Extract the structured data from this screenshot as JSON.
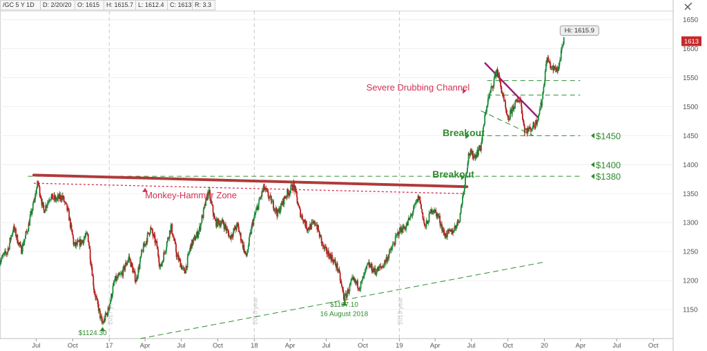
{
  "header": {
    "symbol": "/GC 5 Y 1D",
    "date": "D: 2/20/20",
    "open": "O: 1615",
    "high": "H: 1615.7",
    "low": "L: 1612.4",
    "close": "C: 1613",
    "range": "R: 3.3"
  },
  "icons": {
    "settings": "pencil-ruler-icon"
  },
  "colors": {
    "up": "#1b8a3a",
    "down": "#b71c1c",
    "resistance": "#b03a3a",
    "channel": "#9c1d7a",
    "green_text": "#2e8b2e",
    "red_text": "#d32f4f",
    "price_tag": "#c62828"
  },
  "chart_data": {
    "type": "line",
    "title": "",
    "xlabel": "",
    "ylabel": "",
    "ylim": [
      1100,
      1665
    ],
    "y_ticks": [
      "1150",
      "1200",
      "1250",
      "1300",
      "1350",
      "1400",
      "1450",
      "1500",
      "1550",
      "1600",
      "1650"
    ],
    "x_ticks": [
      "Jul",
      "Oct",
      "17",
      "Apr",
      "Jul",
      "Oct",
      "18",
      "Apr",
      "Jul",
      "Oct",
      "19",
      "Apr",
      "Jul",
      "Oct",
      "20",
      "Apr",
      "Jul",
      "Oct"
    ],
    "x_tick_dates": [
      "2016-07-01",
      "2016-10-01",
      "2017-01-01",
      "2017-04-01",
      "2017-07-01",
      "2017-10-01",
      "2018-01-01",
      "2018-04-01",
      "2018-07-01",
      "2018-10-01",
      "2019-01-01",
      "2019-04-01",
      "2019-07-01",
      "2019-10-01",
      "2020-01-01",
      "2020-04-01",
      "2020-07-01",
      "2020-10-01"
    ],
    "x_range": [
      "2016-04-01",
      "2020-11-20"
    ],
    "year_markers": [
      {
        "date": "2017-01-01",
        "label": "2017 year"
      },
      {
        "date": "2018-01-01",
        "label": "2018 year"
      },
      {
        "date": "2019-01-01",
        "label": "2019 year"
      }
    ],
    "series": [
      {
        "values": [
          [
            "2016-04-01",
            1235
          ],
          [
            "2016-04-20",
            1250
          ],
          [
            "2016-05-05",
            1292
          ],
          [
            "2016-05-25",
            1252
          ],
          [
            "2016-06-10",
            1290
          ],
          [
            "2016-06-24",
            1330
          ],
          [
            "2016-07-06",
            1370
          ],
          [
            "2016-07-20",
            1320
          ],
          [
            "2016-08-05",
            1345
          ],
          [
            "2016-08-20",
            1340
          ],
          [
            "2016-09-05",
            1345
          ],
          [
            "2016-09-20",
            1318
          ],
          [
            "2016-10-05",
            1260
          ],
          [
            "2016-10-20",
            1265
          ],
          [
            "2016-11-08",
            1280
          ],
          [
            "2016-11-25",
            1180
          ],
          [
            "2016-12-15",
            1124.3
          ],
          [
            "2016-12-30",
            1150
          ],
          [
            "2017-01-15",
            1200
          ],
          [
            "2017-02-01",
            1210
          ],
          [
            "2017-02-20",
            1240
          ],
          [
            "2017-03-10",
            1200
          ],
          [
            "2017-03-25",
            1250
          ],
          [
            "2017-04-15",
            1290
          ],
          [
            "2017-05-01",
            1260
          ],
          [
            "2017-05-10",
            1220
          ],
          [
            "2017-06-06",
            1295
          ],
          [
            "2017-06-20",
            1245
          ],
          [
            "2017-07-10",
            1212
          ],
          [
            "2017-07-25",
            1260
          ],
          [
            "2017-08-15",
            1285
          ],
          [
            "2017-09-08",
            1355
          ],
          [
            "2017-09-25",
            1300
          ],
          [
            "2017-10-15",
            1300
          ],
          [
            "2017-11-01",
            1275
          ],
          [
            "2017-11-20",
            1295
          ],
          [
            "2017-12-12",
            1240
          ],
          [
            "2017-12-28",
            1300
          ],
          [
            "2018-01-25",
            1360
          ],
          [
            "2018-02-15",
            1335
          ],
          [
            "2018-03-01",
            1315
          ],
          [
            "2018-03-20",
            1345
          ],
          [
            "2018-04-11",
            1365
          ],
          [
            "2018-04-25",
            1320
          ],
          [
            "2018-05-15",
            1290
          ],
          [
            "2018-06-05",
            1300
          ],
          [
            "2018-06-25",
            1255
          ],
          [
            "2018-07-15",
            1240
          ],
          [
            "2018-07-30",
            1222
          ],
          [
            "2018-08-16",
            1167.1
          ],
          [
            "2018-09-05",
            1200
          ],
          [
            "2018-09-25",
            1190
          ],
          [
            "2018-10-15",
            1228
          ],
          [
            "2018-11-01",
            1215
          ],
          [
            "2018-11-20",
            1225
          ],
          [
            "2018-12-10",
            1250
          ],
          [
            "2018-12-31",
            1285
          ],
          [
            "2019-01-20",
            1295
          ],
          [
            "2019-02-20",
            1345
          ],
          [
            "2019-03-07",
            1290
          ],
          [
            "2019-03-25",
            1325
          ],
          [
            "2019-04-10",
            1310
          ],
          [
            "2019-04-25",
            1278
          ],
          [
            "2019-05-15",
            1285
          ],
          [
            "2019-06-01",
            1305
          ],
          [
            "2019-06-10",
            1345
          ],
          [
            "2019-06-25",
            1420
          ],
          [
            "2019-07-10",
            1415
          ],
          [
            "2019-07-25",
            1430
          ],
          [
            "2019-08-10",
            1505
          ],
          [
            "2019-08-25",
            1540
          ],
          [
            "2019-09-04",
            1565
          ],
          [
            "2019-09-20",
            1515
          ],
          [
            "2019-10-01",
            1475
          ],
          [
            "2019-10-15",
            1500
          ],
          [
            "2019-11-01",
            1515
          ],
          [
            "2019-11-12",
            1460
          ],
          [
            "2019-11-25",
            1460
          ],
          [
            "2019-12-10",
            1470
          ],
          [
            "2019-12-25",
            1505
          ],
          [
            "2020-01-08",
            1585
          ],
          [
            "2020-01-20",
            1565
          ],
          [
            "2020-02-05",
            1565
          ],
          [
            "2020-02-20",
            1615.9
          ]
        ]
      }
    ],
    "reference_lines": [
      {
        "label": "$1450",
        "y": 1450,
        "from": "2019-07-20",
        "to": "2020-03-31",
        "style": "dashed",
        "color": "#2e8b2e"
      },
      {
        "label": "$1400",
        "y": 1400,
        "style": "marker",
        "color": "#2e8b2e"
      },
      {
        "label": "$1380",
        "y": 1380,
        "from": "2016-06-10",
        "to": "2020-03-31",
        "style": "dashed",
        "color": "#2e8b2e"
      },
      {
        "label": "",
        "y": 1545,
        "from": "2019-08-10",
        "to": "2020-03-31",
        "style": "dashed",
        "color": "#2e8b2e"
      },
      {
        "label": "",
        "y": 1520,
        "from": "2019-08-10",
        "to": "2020-03-31",
        "style": "dashed",
        "color": "#2e8b2e"
      }
    ],
    "trendlines": [
      {
        "name": "resistance",
        "from": [
          "2016-06-25",
          1382
        ],
        "to": [
          "2019-06-20",
          1362
        ],
        "color": "#b03a3a",
        "style": "thick"
      },
      {
        "name": "monkey-hammer",
        "from": [
          "2016-06-25",
          1368
        ],
        "to": [
          "2019-06-15",
          1350
        ],
        "color": "#d32f4f",
        "style": "dotted"
      },
      {
        "name": "support",
        "from": [
          "2017-03-20",
          1100
        ],
        "to": [
          "2020-01-01",
          1232
        ],
        "color": "#2e8b2e",
        "style": "dashed"
      },
      {
        "name": "channel",
        "from": [
          "2019-08-05",
          1575
        ],
        "to": [
          "2019-12-15",
          1482
        ],
        "color": "#9c1d7a",
        "style": "thick"
      },
      {
        "name": "channel-lower",
        "from": [
          "2019-07-25",
          1493
        ],
        "to": [
          "2019-12-05",
          1450
        ],
        "color": "#2e8b2e",
        "style": "dashed"
      }
    ],
    "annotations": [
      {
        "text": "Monkey-Hammer Zone",
        "date": "2017-04-01",
        "y": 1342,
        "color": "#d32f4f"
      },
      {
        "text": "Severe Drubbing Channel",
        "date": "2018-10-10",
        "y": 1528,
        "color": "#d32f4f"
      },
      {
        "text": "Breakout",
        "date": "2019-04-20",
        "y": 1449,
        "color": "#2e8b2e"
      },
      {
        "text": "Breakout",
        "date": "2019-03-25",
        "y": 1378,
        "color": "#2e8b2e"
      },
      {
        "text": "$1124.30",
        "date": "2016-11-20",
        "y": 1106,
        "color": "#2e8b2e"
      },
      {
        "text": "$1167.10",
        "date": "2018-08-15",
        "y": 1155,
        "color": "#2e8b2e"
      },
      {
        "text": "16 August 2018",
        "date": "2018-08-15",
        "y": 1139,
        "color": "#2e8b2e"
      }
    ],
    "hi_label": "Hi: 1615.9",
    "last_price": "1613"
  }
}
